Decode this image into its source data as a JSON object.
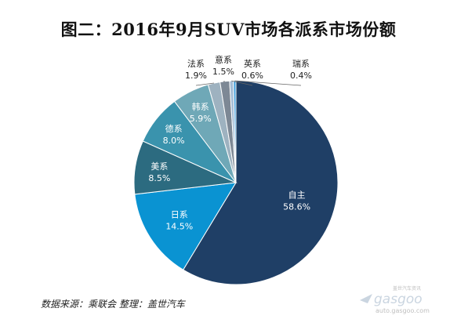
{
  "chart_data": {
    "type": "pie",
    "title": "图二：2016年9月SUV市场各派系市场份额",
    "slices": [
      {
        "label": "自主",
        "value": 58.6,
        "value_text": "58.6%",
        "color": "#1f3f66"
      },
      {
        "label": "日系",
        "value": 14.5,
        "value_text": "14.5%",
        "color": "#0a93d2"
      },
      {
        "label": "美系",
        "value": 8.5,
        "value_text": "8.5%",
        "color": "#2c6b80"
      },
      {
        "label": "德系",
        "value": 8.0,
        "value_text": "8.0%",
        "color": "#3a93ad"
      },
      {
        "label": "韩系",
        "value": 5.9,
        "value_text": "5.9%",
        "color": "#6fa8b7"
      },
      {
        "label": "法系",
        "value": 1.9,
        "value_text": "1.9%",
        "color": "#9eb2c0"
      },
      {
        "label": "意系",
        "value": 1.5,
        "value_text": "1.5%",
        "color": "#7d8895"
      },
      {
        "label": "英系",
        "value": 0.6,
        "value_text": "0.6%",
        "color": "#a5bdd5"
      },
      {
        "label": "瑞系",
        "value": 0.4,
        "value_text": "0.4%",
        "color": "#3f9fde"
      }
    ]
  },
  "source_text": "数据来源：乘联会  整理：盖世汽车",
  "watermark": {
    "brand": "gasgoo",
    "cn": "盖世汽车资讯",
    "url": "auto.gasgoo.com"
  }
}
